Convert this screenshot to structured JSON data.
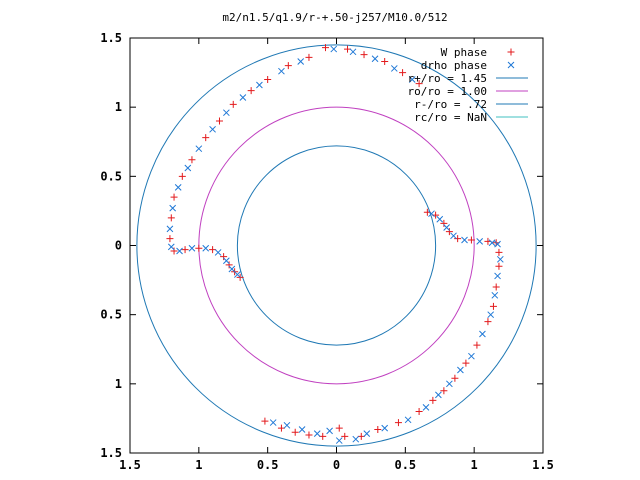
{
  "chart_data": {
    "type": "scatter",
    "title": "m2/n1.5/q1.9/r-+.50-j257/M10.0/512",
    "xlim": [
      -1.5,
      1.5
    ],
    "ylim": [
      -1.5,
      1.5
    ],
    "xticks": [
      -1.5,
      -1,
      -0.5,
      0,
      0.5,
      1,
      1.5
    ],
    "yticks": [
      -1.5,
      -1,
      -0.5,
      0,
      0.5,
      1,
      1.5
    ],
    "xtick_labels": [
      "1.5",
      "1",
      "0.5",
      "0",
      "0.5",
      "1",
      "1.5"
    ],
    "ytick_labels": [
      "1.5",
      "1",
      "0.5",
      "0",
      "0.5",
      "1",
      "1.5"
    ],
    "grid": false,
    "legend_position": "top-right",
    "series": [
      {
        "name": "W phase",
        "marker": "plus",
        "color": "#e31a1c",
        "points": [
          [
            0.06,
            -1.38
          ],
          [
            0.18,
            -1.38
          ],
          [
            0.02,
            -1.32
          ],
          [
            -0.1,
            -1.38
          ],
          [
            -0.2,
            -1.37
          ],
          [
            -0.3,
            -1.35
          ],
          [
            -0.4,
            -1.32
          ],
          [
            -0.52,
            -1.27
          ],
          [
            0.3,
            -1.33
          ],
          [
            0.45,
            -1.28
          ],
          [
            0.6,
            -1.2
          ],
          [
            0.7,
            -1.12
          ],
          [
            0.78,
            -1.05
          ],
          [
            0.86,
            -0.96
          ],
          [
            0.94,
            -0.85
          ],
          [
            1.02,
            -0.72
          ],
          [
            1.1,
            -0.55
          ],
          [
            1.14,
            -0.44
          ],
          [
            1.16,
            -0.3
          ],
          [
            1.18,
            -0.15
          ],
          [
            1.18,
            -0.05
          ],
          [
            1.16,
            0.02
          ],
          [
            1.1,
            0.03
          ],
          [
            0.98,
            0.04
          ],
          [
            0.88,
            0.05
          ],
          [
            0.82,
            0.1
          ],
          [
            0.78,
            0.16
          ],
          [
            0.72,
            0.22
          ],
          [
            0.66,
            0.24
          ],
          [
            0.08,
            1.42
          ],
          [
            -0.08,
            1.43
          ],
          [
            0.2,
            1.38
          ],
          [
            0.35,
            1.33
          ],
          [
            0.48,
            1.25
          ],
          [
            0.6,
            1.17
          ],
          [
            -0.2,
            1.36
          ],
          [
            -0.35,
            1.3
          ],
          [
            -0.5,
            1.2
          ],
          [
            -0.62,
            1.12
          ],
          [
            -0.75,
            1.02
          ],
          [
            -0.85,
            0.9
          ],
          [
            -0.95,
            0.78
          ],
          [
            -1.05,
            0.62
          ],
          [
            -1.12,
            0.5
          ],
          [
            -1.18,
            0.35
          ],
          [
            -1.2,
            0.2
          ],
          [
            -1.21,
            0.05
          ],
          [
            -1.18,
            -0.04
          ],
          [
            -1.1,
            -0.03
          ],
          [
            -1.0,
            -0.02
          ],
          [
            -0.9,
            -0.03
          ],
          [
            -0.82,
            -0.08
          ],
          [
            -0.78,
            -0.14
          ],
          [
            -0.74,
            -0.19
          ],
          [
            -0.7,
            -0.23
          ]
        ]
      },
      {
        "name": "drho phase",
        "marker": "x",
        "color": "#1f78d6",
        "points": [
          [
            0.02,
            -1.41
          ],
          [
            0.14,
            -1.4
          ],
          [
            -0.05,
            -1.34
          ],
          [
            -0.14,
            -1.36
          ],
          [
            -0.25,
            -1.33
          ],
          [
            -0.36,
            -1.3
          ],
          [
            -0.46,
            -1.28
          ],
          [
            0.22,
            -1.36
          ],
          [
            0.35,
            -1.32
          ],
          [
            0.52,
            -1.26
          ],
          [
            0.65,
            -1.17
          ],
          [
            0.74,
            -1.08
          ],
          [
            0.82,
            -1.0
          ],
          [
            0.9,
            -0.9
          ],
          [
            0.98,
            -0.8
          ],
          [
            1.06,
            -0.64
          ],
          [
            1.12,
            -0.5
          ],
          [
            1.15,
            -0.36
          ],
          [
            1.17,
            -0.22
          ],
          [
            1.19,
            -0.1
          ],
          [
            1.17,
            0.01
          ],
          [
            1.13,
            0.02
          ],
          [
            1.04,
            0.03
          ],
          [
            0.93,
            0.04
          ],
          [
            0.85,
            0.07
          ],
          [
            0.8,
            0.13
          ],
          [
            0.75,
            0.19
          ],
          [
            0.69,
            0.23
          ],
          [
            0.12,
            1.4
          ],
          [
            -0.02,
            1.42
          ],
          [
            0.28,
            1.35
          ],
          [
            0.42,
            1.28
          ],
          [
            0.55,
            1.2
          ],
          [
            -0.26,
            1.33
          ],
          [
            -0.4,
            1.26
          ],
          [
            -0.56,
            1.16
          ],
          [
            -0.68,
            1.07
          ],
          [
            -0.8,
            0.96
          ],
          [
            -0.9,
            0.84
          ],
          [
            -1.0,
            0.7
          ],
          [
            -1.08,
            0.56
          ],
          [
            -1.15,
            0.42
          ],
          [
            -1.19,
            0.27
          ],
          [
            -1.21,
            0.12
          ],
          [
            -1.2,
            -0.01
          ],
          [
            -1.14,
            -0.04
          ],
          [
            -1.05,
            -0.02
          ],
          [
            -0.95,
            -0.02
          ],
          [
            -0.86,
            -0.05
          ],
          [
            -0.8,
            -0.11
          ],
          [
            -0.76,
            -0.17
          ],
          [
            -0.72,
            -0.21
          ]
        ]
      }
    ],
    "circles": [
      {
        "name": "r+/ro = 1.45",
        "radius": 1.45,
        "color": "#1f78b4"
      },
      {
        "name": "ro/ro = 1.00",
        "radius": 1.0,
        "color": "#c040c0"
      },
      {
        "name": "r-/ro = .72",
        "radius": 0.72,
        "color": "#1f78b4"
      },
      {
        "name": "rc/ro = NaN",
        "radius": null,
        "color": "#40c0c0"
      }
    ]
  }
}
